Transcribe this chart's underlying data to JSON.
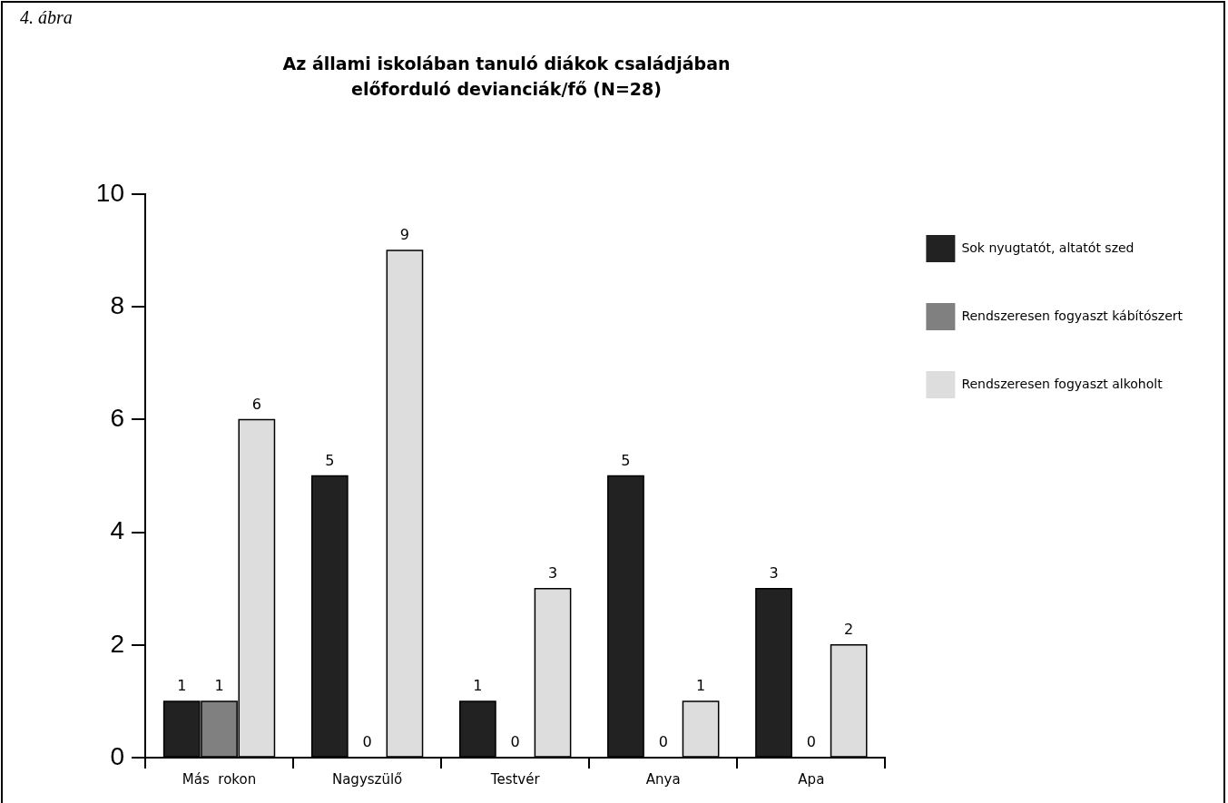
{
  "chart_data": {
    "type": "bar",
    "title": "Az állami iskolában tanuló diákok családjában előforduló devianciák/fő (N=28)",
    "annotations": [
      "4. ábra"
    ],
    "categories": [
      "Más  rokon",
      "Nagyszülő",
      "Testvér",
      "Anya",
      "Apa"
    ],
    "series": [
      {
        "name": "Sok nyugtatót, altatót szed",
        "color": "#222222",
        "values": [
          1,
          5,
          1,
          5,
          3
        ]
      },
      {
        "name": "Rendszeresen fogyaszt kábítószert",
        "color": "#808080",
        "values": [
          1,
          0,
          0,
          0,
          0
        ]
      },
      {
        "name": "Rendszeresen fogyaszt alkoholt",
        "color": "#dddddd",
        "values": [
          6,
          9,
          3,
          1,
          2
        ]
      }
    ],
    "ylim": [
      0,
      10
    ],
    "yticks": [
      0,
      2,
      4,
      6,
      8,
      10
    ],
    "grid": false,
    "legend": "right",
    "data_labels": true
  }
}
